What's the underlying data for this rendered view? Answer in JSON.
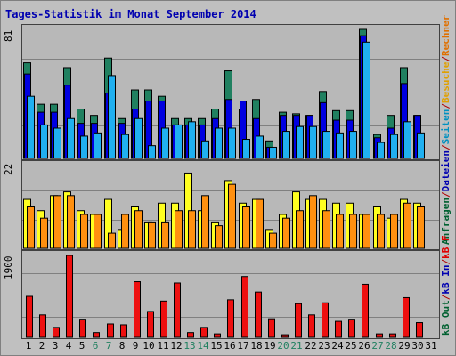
{
  "title": "Tages-Statistik im Monat September 2014",
  "y_max_labels": {
    "top": "81",
    "middle": "22",
    "bottom": "1900"
  },
  "right_labels": {
    "top": [
      {
        "text": "Anfragen",
        "color": "#006030"
      },
      {
        "text": "/",
        "color": "#b00000"
      },
      {
        "text": "Dateien",
        "color": "#0000b0"
      },
      {
        "text": "/",
        "color": "#b00000"
      },
      {
        "text": "Seiten",
        "color": "#0090c0"
      },
      {
        "text": "/",
        "color": "#b00000"
      },
      {
        "text": "Besuche",
        "color": "#e0a000"
      },
      {
        "text": "/",
        "color": "#b00000"
      },
      {
        "text": "Rechner",
        "color": "#e07000"
      }
    ],
    "bottom": [
      {
        "text": "kB Out",
        "color": "#006030"
      },
      {
        "text": "/",
        "color": "#b00000"
      },
      {
        "text": "kB In",
        "color": "#0000b0"
      },
      {
        "text": "/",
        "color": "#b00000"
      },
      {
        "text": "kB F",
        "color": "#e00000"
      }
    ]
  },
  "colors": {
    "anfragen": "#208060",
    "dateien": "#0000e0",
    "seiten": "#20b0f0",
    "besuche": "#ffff20",
    "rechner": "#ff9010",
    "kbf": "#ee1010",
    "weekday_label": "#000000",
    "weekend_label": "#208060"
  },
  "chart_data": [
    {
      "type": "bar",
      "title": "",
      "ylim": [
        0,
        81
      ],
      "categories": [
        "1",
        "2",
        "3",
        "4",
        "5",
        "6",
        "7",
        "8",
        "9",
        "10",
        "11",
        "12",
        "13",
        "14",
        "15",
        "16",
        "17",
        "18",
        "19",
        "20",
        "21",
        "22",
        "23",
        "24",
        "25",
        "26",
        "27",
        "28",
        "29",
        "30",
        "31"
      ],
      "series": [
        {
          "name": "Anfragen",
          "values": [
            60,
            34,
            34,
            57,
            31,
            27,
            63,
            25,
            43,
            43,
            39,
            25,
            25,
            25,
            31,
            55,
            31,
            37,
            11,
            29,
            28,
            27,
            42,
            30,
            30,
            81,
            15,
            27,
            57,
            27,
            0
          ]
        },
        {
          "name": "Dateien",
          "values": [
            53,
            29,
            29,
            46,
            22,
            22,
            41,
            22,
            31,
            36,
            36,
            21,
            21,
            21,
            25,
            37,
            36,
            25,
            7,
            27,
            27,
            27,
            35,
            24,
            24,
            77,
            13,
            19,
            47,
            27,
            0
          ]
        },
        {
          "name": "Seiten",
          "values": [
            39,
            21,
            19,
            25,
            14,
            16,
            52,
            15,
            25,
            8,
            19,
            21,
            23,
            11,
            19,
            19,
            12,
            14,
            7,
            17,
            20,
            20,
            17,
            16,
            17,
            73,
            10,
            15,
            23,
            16,
            0
          ]
        }
      ]
    },
    {
      "type": "bar",
      "title": "",
      "ylim": [
        0,
        22
      ],
      "categories": [
        "1",
        "2",
        "3",
        "4",
        "5",
        "6",
        "7",
        "8",
        "9",
        "10",
        "11",
        "12",
        "13",
        "14",
        "15",
        "16",
        "17",
        "18",
        "19",
        "20",
        "21",
        "22",
        "23",
        "24",
        "25",
        "26",
        "27",
        "28",
        "29",
        "30",
        "31"
      ],
      "series": [
        {
          "name": "Besuche",
          "values": [
            13,
            10,
            14,
            15,
            10,
            9,
            13,
            5,
            11,
            7,
            12,
            12,
            20,
            10,
            7,
            18,
            12,
            13,
            5,
            9,
            15,
            13,
            13,
            12,
            12,
            9,
            11,
            8,
            13,
            12,
            0
          ]
        },
        {
          "name": "Rechner",
          "values": [
            11,
            8,
            14,
            14,
            9,
            9,
            4,
            9,
            10,
            7,
            7,
            10,
            10,
            14,
            6,
            17,
            11,
            13,
            4,
            8,
            10,
            14,
            10,
            9,
            9,
            9,
            9,
            9,
            12,
            11,
            0
          ]
        }
      ]
    },
    {
      "type": "bar",
      "title": "",
      "ylim": [
        0,
        1900
      ],
      "categories": [
        "1",
        "2",
        "3",
        "4",
        "5",
        "6",
        "7",
        "8",
        "9",
        "10",
        "11",
        "12",
        "13",
        "14",
        "15",
        "16",
        "17",
        "18",
        "19",
        "20",
        "21",
        "22",
        "23",
        "24",
        "25",
        "26",
        "27",
        "28",
        "29",
        "30",
        "31"
      ],
      "series": [
        {
          "name": "kB F",
          "values": [
            950,
            520,
            230,
            1900,
            420,
            110,
            310,
            290,
            1290,
            600,
            840,
            1260,
            110,
            230,
            80,
            870,
            1410,
            1050,
            430,
            60,
            780,
            520,
            800,
            370,
            420,
            1230,
            80,
            80,
            920,
            340,
            0
          ]
        }
      ]
    }
  ]
}
